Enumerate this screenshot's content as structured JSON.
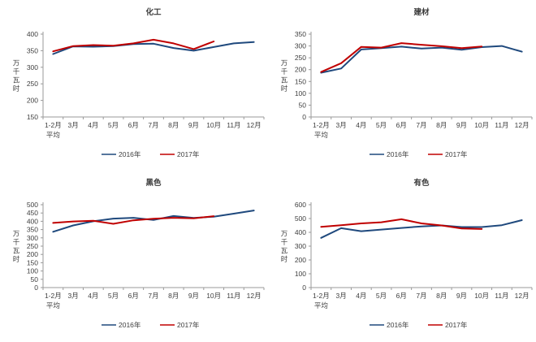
{
  "page": {
    "background": "#ffffff"
  },
  "style": {
    "axis_color": "#9a9a9a",
    "text_color": "#404040",
    "series_2016_color": "#1F497D",
    "series_2017_color": "#C00000"
  },
  "legend": {
    "items": [
      {
        "label": "2016年",
        "color": "#1F497D"
      },
      {
        "label": "2017年",
        "color": "#C00000"
      }
    ],
    "position": "bottom"
  },
  "chart_data": [
    {
      "type": "line",
      "title": "化工",
      "ylabel": "万千瓦时",
      "categories": [
        "1-2月",
        "3月",
        "4月",
        "5月",
        "6月",
        "7月",
        "8月",
        "9月",
        "10月",
        "11月",
        "12月"
      ],
      "first_category_second_line": "平均",
      "ylim": [
        150,
        400
      ],
      "ytick_step": 50,
      "grid": false,
      "legend_position": "bottom",
      "series": [
        {
          "name": "2016年",
          "color": "#1F497D",
          "values": [
            340,
            363,
            362,
            364,
            370,
            371,
            358,
            350,
            361,
            372,
            376
          ]
        },
        {
          "name": "2017年",
          "color": "#C00000",
          "values": [
            348,
            364,
            367,
            365,
            372,
            383,
            372,
            355,
            378,
            null,
            null
          ]
        }
      ]
    },
    {
      "type": "line",
      "title": "建材",
      "ylabel": "万千瓦时",
      "categories": [
        "1-2月",
        "3月",
        "4月",
        "5月",
        "6月",
        "7月",
        "8月",
        "9月",
        "10月",
        "11月",
        "12月"
      ],
      "first_category_second_line": "平均",
      "ylim": [
        0,
        350
      ],
      "ytick_step": 50,
      "grid": false,
      "legend_position": "bottom",
      "series": [
        {
          "name": "2016年",
          "color": "#1F497D",
          "values": [
            187,
            205,
            285,
            291,
            297,
            289,
            293,
            284,
            295,
            300,
            276
          ]
        },
        {
          "name": "2017年",
          "color": "#C00000",
          "values": [
            190,
            227,
            296,
            293,
            312,
            305,
            299,
            291,
            298,
            null,
            null
          ]
        }
      ]
    },
    {
      "type": "line",
      "title": "黑色",
      "ylabel": "万千瓦时",
      "categories": [
        "1-2月",
        "3月",
        "4月",
        "5月",
        "6月",
        "7月",
        "8月",
        "9月",
        "10月",
        "11月",
        "12月"
      ],
      "first_category_second_line": "平均",
      "ylim": [
        0,
        500
      ],
      "ytick_step": 50,
      "grid": false,
      "legend_position": "bottom",
      "series": [
        {
          "name": "2016年",
          "color": "#1F497D",
          "values": [
            337,
            375,
            400,
            416,
            421,
            408,
            432,
            420,
            428,
            446,
            465
          ]
        },
        {
          "name": "2017年",
          "color": "#C00000",
          "values": [
            390,
            399,
            403,
            385,
            406,
            415,
            421,
            418,
            431,
            null,
            null
          ]
        }
      ]
    },
    {
      "type": "line",
      "title": "有色",
      "ylabel": "万千瓦时",
      "categories": [
        "1-2月",
        "3月",
        "4月",
        "5月",
        "6月",
        "7月",
        "8月",
        "9月",
        "10月",
        "11月",
        "12月"
      ],
      "first_category_second_line": "平均",
      "ylim": [
        0,
        600
      ],
      "ytick_step": 100,
      "grid": false,
      "legend_position": "bottom",
      "series": [
        {
          "name": "2016年",
          "color": "#1F497D",
          "values": [
            360,
            430,
            408,
            420,
            432,
            443,
            450,
            438,
            438,
            452,
            488
          ]
        },
        {
          "name": "2017年",
          "color": "#C00000",
          "values": [
            440,
            452,
            465,
            473,
            495,
            465,
            450,
            428,
            424,
            null,
            null
          ]
        }
      ]
    }
  ]
}
